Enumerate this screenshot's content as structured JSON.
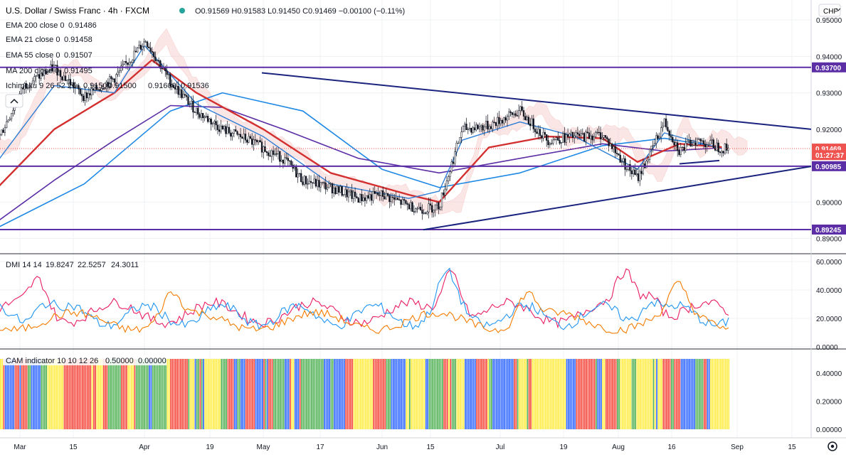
{
  "header": {
    "symbol_title": "U.S. Dollar / Swiss Franc · 4h · FXCM",
    "ohlc_text": "O0.91569 H0.91583 L0.91450 C0.91469 −0.00100 (−0.11%)",
    "currency_badge": "CHF",
    "collapse_icon": "chevron-up-icon"
  },
  "legends": {
    "ema200": {
      "label": "EMA 200 close 0",
      "value": "0.91486",
      "color": "#5b2ea6"
    },
    "ema21": {
      "label": "EMA 21 close 0",
      "value": "0.91458",
      "color": "#2f7fd6"
    },
    "ema55": {
      "label": "EMA 55 close 0",
      "value": "0.91507",
      "color": "#d32f2f"
    },
    "ma200": {
      "label": "MA 200 close 0",
      "value": "0.91495",
      "color": "#1e88e5"
    },
    "ichimoku": {
      "label": "Ichimoku 9 26 52 26",
      "values": [
        "0.91500",
        "0.91500",
        "0.91600",
        "0.91536"
      ],
      "colors": [
        "#2962ff",
        "#d32f2f",
        "#8bc34a",
        "#ef5350"
      ]
    },
    "dmi": {
      "label": "DMI 14 14",
      "values": [
        "19.8247",
        "22.5257",
        "24.3011"
      ],
      "colors": [
        "#e91e63",
        "#2196f3",
        "#f57c00"
      ]
    },
    "cam": {
      "label": "CAM indicator 10 10 12 26",
      "values": [
        "0.50000",
        "0.00000"
      ],
      "colors": [
        "#2962ff",
        "#26a69a"
      ]
    }
  },
  "price_axis": {
    "ticks": [
      "0.95000",
      "0.94000",
      "0.93000",
      "0.92000",
      "0.91000",
      "0.90000",
      "0.89000"
    ],
    "level_badges": [
      {
        "text": "0.93700",
        "color": "#5b2ea6"
      },
      {
        "text": "0.91469",
        "color": "#ef5350"
      },
      {
        "text": "01:27:37",
        "color": "#ef5350"
      },
      {
        "text": "0.90985",
        "color": "#5b2ea6"
      },
      {
        "text": "0.89245",
        "color": "#5b2ea6"
      }
    ]
  },
  "dmi_axis": {
    "ticks": [
      "60.0000",
      "40.0000",
      "20.0000",
      "0.0000"
    ]
  },
  "cam_axis": {
    "ticks": [
      "0.40000",
      "0.20000",
      "0.00000"
    ]
  },
  "time_axis": {
    "ticks": [
      "Mar",
      "15",
      "Apr",
      "19",
      "May",
      "17",
      "Jun",
      "15",
      "Jul",
      "19",
      "Aug",
      "16",
      "Sep",
      "15"
    ]
  },
  "icons": {
    "settings": "gear-icon"
  },
  "chart_data": {
    "type": "candlestick",
    "symbol": "USD/CHF",
    "timeframe": "4h",
    "price_range": [
      0.886,
      0.9555
    ],
    "last_price": 0.91469,
    "horizontal_levels": [
      0.937,
      0.90985,
      0.89245
    ],
    "trendlines": [
      {
        "name": "descending resistance",
        "points": [
          [
            "May",
            0.9355
          ],
          [
            "Sep",
            0.92
          ]
        ]
      },
      {
        "name": "ascending support",
        "points": [
          [
            "Jun 10",
            0.8924
          ],
          [
            "Sep",
            0.9098
          ]
        ]
      },
      {
        "name": "short support",
        "points": [
          [
            "Aug 18",
            0.9105
          ],
          [
            "Aug 26",
            0.911
          ]
        ]
      }
    ],
    "close_series": [
      {
        "date": "Feb 26",
        "value": 0.915
      },
      {
        "date": "Mar 2",
        "value": 0.932
      },
      {
        "date": "Mar 9",
        "value": 0.937
      },
      {
        "date": "Mar 16",
        "value": 0.929
      },
      {
        "date": "Mar 23",
        "value": 0.934
      },
      {
        "date": "Mar 30",
        "value": 0.944
      },
      {
        "date": "Apr 1",
        "value": 0.945
      },
      {
        "date": "Apr 8",
        "value": 0.933
      },
      {
        "date": "Apr 15",
        "value": 0.925
      },
      {
        "date": "Apr 22",
        "value": 0.92
      },
      {
        "date": "Apr 29",
        "value": 0.917
      },
      {
        "date": "May 6",
        "value": 0.912
      },
      {
        "date": "May 11",
        "value": 0.906
      },
      {
        "date": "May 18",
        "value": 0.904
      },
      {
        "date": "May 25",
        "value": 0.901
      },
      {
        "date": "Jun 1",
        "value": 0.902
      },
      {
        "date": "Jun 8",
        "value": 0.899
      },
      {
        "date": "Jun 12",
        "value": 0.898
      },
      {
        "date": "Jun 16",
        "value": 0.899
      },
      {
        "date": "Jun 22",
        "value": 0.92
      },
      {
        "date": "Jun 29",
        "value": 0.921
      },
      {
        "date": "Jul 6",
        "value": 0.925
      },
      {
        "date": "Jul 13",
        "value": 0.917
      },
      {
        "date": "Jul 20",
        "value": 0.918
      },
      {
        "date": "Jul 27",
        "value": 0.9185
      },
      {
        "date": "Aug 3",
        "value": 0.91
      },
      {
        "date": "Aug 6",
        "value": 0.9065
      },
      {
        "date": "Aug 10",
        "value": 0.915
      },
      {
        "date": "Aug 13",
        "value": 0.922
      },
      {
        "date": "Aug 17",
        "value": 0.914
      },
      {
        "date": "Aug 21",
        "value": 0.917
      },
      {
        "date": "Aug 25",
        "value": 0.916
      },
      {
        "date": "Aug 28",
        "value": 0.9147
      }
    ],
    "ema21": [
      {
        "date": "Feb 26",
        "value": 0.91
      },
      {
        "date": "Mar 9",
        "value": 0.932
      },
      {
        "date": "Mar 23",
        "value": 0.93
      },
      {
        "date": "Apr 1",
        "value": 0.943
      },
      {
        "date": "Apr 15",
        "value": 0.927
      },
      {
        "date": "May 1",
        "value": 0.918
      },
      {
        "date": "May 18",
        "value": 0.905
      },
      {
        "date": "Jun 8",
        "value": 0.901
      },
      {
        "date": "Jun 16",
        "value": 0.903
      },
      {
        "date": "Jun 22",
        "value": 0.917
      },
      {
        "date": "Jul 6",
        "value": 0.922
      },
      {
        "date": "Jul 20",
        "value": 0.918
      },
      {
        "date": "Aug 6",
        "value": 0.909
      },
      {
        "date": "Aug 13",
        "value": 0.919
      },
      {
        "date": "Aug 28",
        "value": 0.9146
      }
    ],
    "ema55": [
      {
        "date": "Feb 26",
        "value": 0.903
      },
      {
        "date": "Mar 9",
        "value": 0.92
      },
      {
        "date": "Mar 23",
        "value": 0.93
      },
      {
        "date": "Apr 3",
        "value": 0.939
      },
      {
        "date": "Apr 15",
        "value": 0.93
      },
      {
        "date": "May 1",
        "value": 0.92
      },
      {
        "date": "May 18",
        "value": 0.908
      },
      {
        "date": "Jun 8",
        "value": 0.902
      },
      {
        "date": "Jun 16",
        "value": 0.9
      },
      {
        "date": "Jun 29",
        "value": 0.915
      },
      {
        "date": "Jul 13",
        "value": 0.918
      },
      {
        "date": "Jul 27",
        "value": 0.9175
      },
      {
        "date": "Aug 6",
        "value": 0.911
      },
      {
        "date": "Aug 17",
        "value": 0.916
      },
      {
        "date": "Aug 28",
        "value": 0.9151
      }
    ],
    "ema200": [
      {
        "date": "Feb 26",
        "value": 0.894
      },
      {
        "date": "Mar 9",
        "value": 0.906
      },
      {
        "date": "Mar 23",
        "value": 0.917
      },
      {
        "date": "Apr 8",
        "value": 0.9265
      },
      {
        "date": "Apr 22",
        "value": 0.926
      },
      {
        "date": "May 6",
        "value": 0.92
      },
      {
        "date": "May 25",
        "value": 0.912
      },
      {
        "date": "Jun 16",
        "value": 0.908
      },
      {
        "date": "Jul 6",
        "value": 0.912
      },
      {
        "date": "Jul 27",
        "value": 0.916
      },
      {
        "date": "Aug 13",
        "value": 0.914
      },
      {
        "date": "Aug 28",
        "value": 0.9149
      }
    ],
    "ma200": [
      {
        "date": "Feb 26",
        "value": 0.8925
      },
      {
        "date": "Mar 16",
        "value": 0.905
      },
      {
        "date": "Apr 8",
        "value": 0.925
      },
      {
        "date": "Apr 22",
        "value": 0.93
      },
      {
        "date": "May 11",
        "value": 0.925
      },
      {
        "date": "Jun 1",
        "value": 0.909
      },
      {
        "date": "Jun 16",
        "value": 0.904
      },
      {
        "date": "Jul 6",
        "value": 0.908
      },
      {
        "date": "Jul 27",
        "value": 0.9155
      },
      {
        "date": "Aug 13",
        "value": 0.9175
      },
      {
        "date": "Aug 28",
        "value": 0.915
      }
    ],
    "dmi": {
      "range": [
        0,
        60
      ],
      "plus_di_last": 19.8247,
      "minus_di_last": 22.5257,
      "adx_last": 24.3011
    },
    "cam": {
      "range": [
        0,
        0.5
      ],
      "bar_value": 0.5,
      "colors": [
        "#2962ff",
        "#f44336",
        "#4caf50",
        "#ffeb3b"
      ]
    }
  }
}
